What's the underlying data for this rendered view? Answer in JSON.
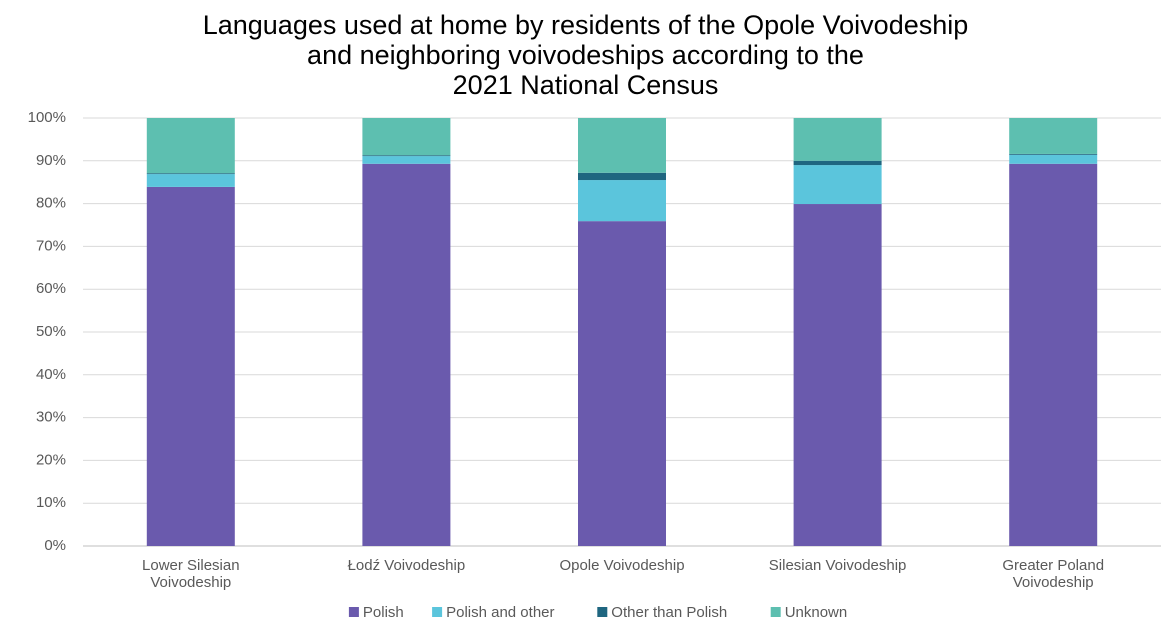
{
  "chart_data": {
    "type": "stacked_bar",
    "title": "Languages used at home by residents of the Opole Voivodeship\nand neighboring voivodeships according to the\n2021 National Census",
    "categories": [
      "Lower Silesian\nVoivodeship",
      "Łodź Voivodeship",
      "Opole Voivodeship",
      "Silesian Voivodeship",
      "Greater Poland\nVoivodeship"
    ],
    "series": [
      {
        "name": "Polish",
        "color": "#6a5aad",
        "values": [
          83.9,
          89.3,
          75.9,
          79.9,
          89.3
        ]
      },
      {
        "name": "Polish and other",
        "color": "#5bc5dc",
        "values": [
          3.0,
          1.8,
          9.6,
          9.1,
          2.1
        ]
      },
      {
        "name": "Other than Polish",
        "color": "#1f6680",
        "values": [
          0.2,
          0.2,
          1.7,
          1.0,
          0.2
        ]
      },
      {
        "name": "Unknown",
        "color": "#5dbfb0",
        "values": [
          12.9,
          8.7,
          12.8,
          10.0,
          8.4
        ]
      }
    ],
    "ylim": [
      0,
      100
    ],
    "yticks": [
      {
        "value": 0,
        "label": "0%"
      },
      {
        "value": 10,
        "label": "10%"
      },
      {
        "value": 20,
        "label": "20%"
      },
      {
        "value": 30,
        "label": "30%"
      },
      {
        "value": 40,
        "label": "40%"
      },
      {
        "value": 50,
        "label": "50%"
      },
      {
        "value": 60,
        "label": "60%"
      },
      {
        "value": 70,
        "label": "70%"
      },
      {
        "value": 80,
        "label": "80%"
      },
      {
        "value": 90,
        "label": "90%"
      },
      {
        "value": 100,
        "label": "100%"
      }
    ],
    "grid": true,
    "legend": "bottom"
  }
}
